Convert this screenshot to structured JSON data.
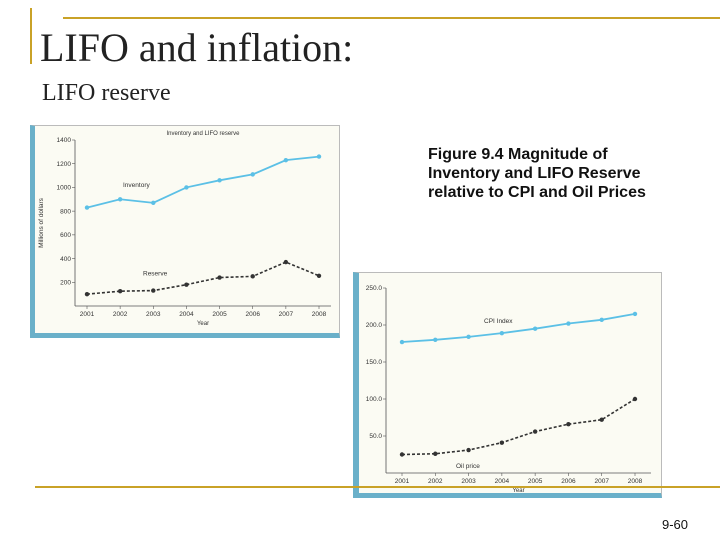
{
  "slide": {
    "title": "LIFO and inflation:",
    "subtitle": "LIFO reserve",
    "caption": "Figure 9.4 Magnitude of Inventory and LIFO Reserve relative to CPI and Oil Prices",
    "page_number": "9-60"
  },
  "colors": {
    "accent_rule": "#c9a227",
    "panel_border": "#6ab0c9",
    "series_blue": "#5bc0e6",
    "series_dark": "#333333"
  },
  "chart_data": [
    {
      "type": "line",
      "title": "Inventory and LIFO reserve",
      "xlabel": "Year",
      "ylabel": "Millions of dollars",
      "ylim": [
        0,
        1400
      ],
      "yticks": [
        "200",
        "400",
        "600",
        "800",
        "1000",
        "1200",
        "1400"
      ],
      "ytick_values": [
        200,
        400,
        600,
        800,
        1000,
        1200,
        1400
      ],
      "categories": [
        "2001",
        "2002",
        "2003",
        "2004",
        "2005",
        "2006",
        "2007",
        "2008"
      ],
      "series": [
        {
          "name": "Inventory",
          "style": "solid",
          "color": "#5bc0e6",
          "values": [
            830,
            900,
            870,
            1000,
            1060,
            1110,
            1230,
            1260
          ]
        },
        {
          "name": "Reserve",
          "style": "dashed",
          "color": "#333333",
          "values": [
            100,
            125,
            130,
            180,
            240,
            250,
            370,
            255
          ]
        }
      ]
    },
    {
      "type": "line",
      "title": "",
      "xlabel": "Year",
      "ylabel": "",
      "ylim": [
        0,
        250
      ],
      "yticks": [
        "50.0",
        "100.0",
        "150.0",
        "200.0",
        "250.0"
      ],
      "ytick_values": [
        50,
        100,
        150,
        200,
        250
      ],
      "categories": [
        "2001",
        "2002",
        "2003",
        "2004",
        "2005",
        "2006",
        "2007",
        "2008"
      ],
      "series": [
        {
          "name": "CPI Index",
          "style": "solid",
          "color": "#5bc0e6",
          "values": [
            177,
            180,
            184,
            189,
            195,
            202,
            207,
            215
          ]
        },
        {
          "name": "Oil price",
          "style": "dashed",
          "color": "#333333",
          "values": [
            25,
            26,
            31,
            41,
            56,
            66,
            72,
            100
          ]
        }
      ]
    }
  ]
}
